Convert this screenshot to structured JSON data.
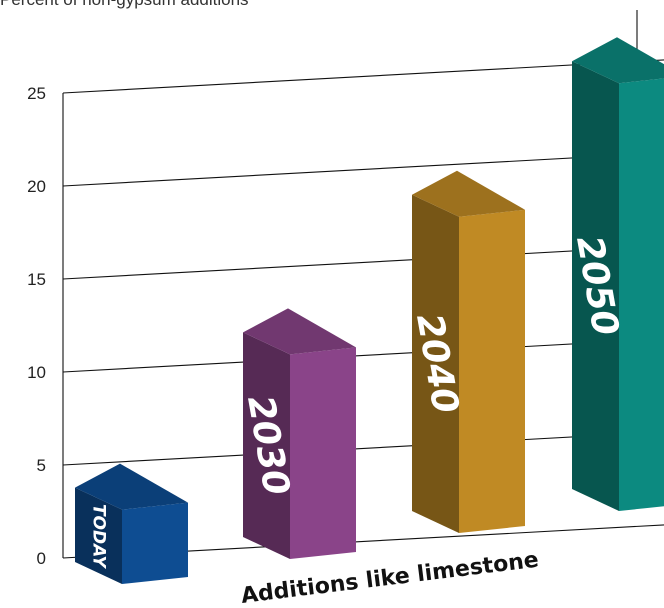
{
  "chart_data": {
    "type": "bar",
    "subtitle": "Percent of non-gypsum additions",
    "xlabel": "Additions like limestone",
    "ylabel": "",
    "ylim": [
      0,
      25
    ],
    "yticks": [
      0,
      5,
      10,
      15,
      20,
      25
    ],
    "grid": true,
    "categories": [
      "TODAY",
      "2030",
      "2040",
      "2050"
    ],
    "values": [
      4,
      11,
      17,
      23
    ],
    "colors": [
      "#0e4d92",
      "#8a4489",
      "#c08a24",
      "#0c8a80"
    ]
  }
}
